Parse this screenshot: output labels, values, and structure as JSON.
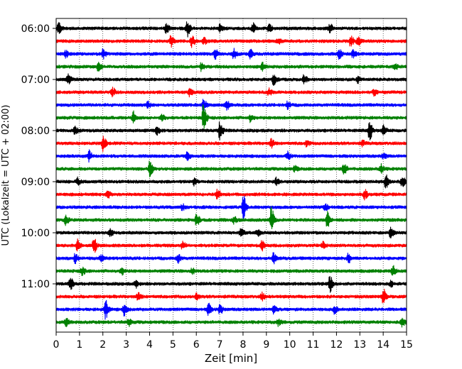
{
  "chart_data": {
    "type": "line",
    "title": "",
    "xlabel": "Zeit  [min]",
    "ylabel": "UTC (Lokalzeit = UTC + 02:00)",
    "xlim": [
      0,
      15
    ],
    "x_ticks": [
      "0",
      "1",
      "2",
      "3",
      "4",
      "5",
      "6",
      "7",
      "8",
      "9",
      "10",
      "11",
      "12",
      "13",
      "14",
      "15"
    ],
    "y_ticks": [
      "06:00",
      "07:00",
      "08:00",
      "09:00",
      "10:00",
      "11:00"
    ],
    "grid": "vertical-dotted",
    "trace_interval_minutes": 15,
    "start_time": "06:00",
    "trace_colors": [
      "#000000",
      "#ff0000",
      "#0000ff",
      "#008000"
    ],
    "traces": [
      {
        "t": "06:00",
        "color": "#000000",
        "events": [
          [
            0.1,
            1.2
          ],
          [
            4.7,
            1.2
          ],
          [
            5.6,
            1.8
          ],
          [
            7.0,
            0.8
          ],
          [
            8.4,
            1.2
          ],
          [
            9.1,
            0.8
          ],
          [
            11.7,
            1.2
          ]
        ]
      },
      {
        "t": "06:15",
        "color": "#ff0000",
        "events": [
          [
            4.9,
            1.2
          ],
          [
            5.8,
            1.4
          ],
          [
            6.3,
            0.8
          ],
          [
            12.6,
            1.3
          ],
          [
            12.9,
            1.0
          ],
          [
            9.5,
            0.7
          ]
        ]
      },
      {
        "t": "06:30",
        "color": "#0000ff",
        "events": [
          [
            0.4,
            0.8
          ],
          [
            2.0,
            1.0
          ],
          [
            6.8,
            1.0
          ],
          [
            7.6,
            1.2
          ],
          [
            8.3,
            0.9
          ],
          [
            12.1,
            1.1
          ],
          [
            12.7,
            0.8
          ]
        ]
      },
      {
        "t": "06:45",
        "color": "#008000",
        "events": [
          [
            1.8,
            1.1
          ],
          [
            6.2,
            0.8
          ],
          [
            8.8,
            0.9
          ],
          [
            14.5,
            0.6
          ]
        ]
      },
      {
        "t": "07:00",
        "color": "#000000",
        "events": [
          [
            0.5,
            1.4
          ],
          [
            9.3,
            1.3
          ],
          [
            10.6,
            0.9
          ],
          [
            12.9,
            0.7
          ]
        ]
      },
      {
        "t": "07:15",
        "color": "#ff0000",
        "events": [
          [
            2.4,
            1.0
          ],
          [
            5.7,
            0.8
          ],
          [
            9.1,
            0.8
          ],
          [
            13.6,
            0.7
          ]
        ]
      },
      {
        "t": "07:30",
        "color": "#0000ff",
        "events": [
          [
            3.9,
            0.7
          ],
          [
            6.3,
            1.4
          ],
          [
            7.3,
            1.0
          ],
          [
            9.9,
            0.8
          ]
        ]
      },
      {
        "t": "07:45",
        "color": "#008000",
        "events": [
          [
            3.3,
            1.4
          ],
          [
            6.3,
            3.2
          ],
          [
            4.5,
            0.8
          ],
          [
            8.3,
            0.8
          ]
        ]
      },
      {
        "t": "08:00",
        "color": "#000000",
        "events": [
          [
            0.8,
            0.9
          ],
          [
            7.0,
            2.2
          ],
          [
            13.4,
            2.2
          ],
          [
            14.0,
            1.1
          ],
          [
            4.3,
            0.8
          ]
        ]
      },
      {
        "t": "08:15",
        "color": "#ff0000",
        "events": [
          [
            2.0,
            1.6
          ],
          [
            9.2,
            0.9
          ],
          [
            13.1,
            0.6
          ],
          [
            10.7,
            0.6
          ]
        ]
      },
      {
        "t": "08:30",
        "color": "#0000ff",
        "events": [
          [
            1.4,
            1.2
          ],
          [
            5.6,
            0.8
          ],
          [
            9.9,
            1.0
          ],
          [
            14.0,
            0.6
          ]
        ]
      },
      {
        "t": "08:45",
        "color": "#008000",
        "events": [
          [
            4.0,
            1.8
          ],
          [
            12.3,
            1.4
          ],
          [
            13.9,
            1.0
          ],
          [
            10.2,
            0.6
          ]
        ]
      },
      {
        "t": "09:00",
        "color": "#000000",
        "events": [
          [
            0.9,
            0.8
          ],
          [
            5.9,
            0.8
          ],
          [
            9.4,
            0.8
          ],
          [
            14.1,
            1.8
          ],
          [
            14.8,
            1.4
          ]
        ]
      },
      {
        "t": "09:15",
        "color": "#ff0000",
        "events": [
          [
            2.2,
            0.8
          ],
          [
            6.9,
            1.2
          ],
          [
            13.2,
            1.0
          ]
        ]
      },
      {
        "t": "09:30",
        "color": "#0000ff",
        "events": [
          [
            8.0,
            2.6
          ],
          [
            5.4,
            0.7
          ],
          [
            11.5,
            0.7
          ]
        ]
      },
      {
        "t": "09:45",
        "color": "#008000",
        "events": [
          [
            0.4,
            1.0
          ],
          [
            6.0,
            1.4
          ],
          [
            9.2,
            2.8
          ],
          [
            11.6,
            1.8
          ],
          [
            7.6,
            0.7
          ]
        ]
      },
      {
        "t": "10:00",
        "color": "#000000",
        "events": [
          [
            2.3,
            0.9
          ],
          [
            7.9,
            1.0
          ],
          [
            8.6,
            0.7
          ],
          [
            14.3,
            1.3
          ]
        ]
      },
      {
        "t": "10:15",
        "color": "#ff0000",
        "events": [
          [
            0.9,
            1.5
          ],
          [
            1.6,
            1.7
          ],
          [
            8.8,
            1.3
          ],
          [
            5.4,
            0.8
          ],
          [
            11.4,
            0.7
          ]
        ]
      },
      {
        "t": "10:30",
        "color": "#0000ff",
        "events": [
          [
            0.8,
            1.0
          ],
          [
            1.9,
            0.8
          ],
          [
            5.2,
            1.0
          ],
          [
            9.3,
            1.2
          ],
          [
            12.5,
            1.0
          ]
        ]
      },
      {
        "t": "10:45",
        "color": "#008000",
        "events": [
          [
            1.1,
            1.0
          ],
          [
            2.8,
            0.8
          ],
          [
            14.4,
            1.2
          ],
          [
            5.8,
            0.6
          ]
        ]
      },
      {
        "t": "11:00",
        "color": "#000000",
        "events": [
          [
            0.6,
            1.3
          ],
          [
            3.4,
            0.8
          ],
          [
            11.7,
            1.8
          ],
          [
            14.3,
            0.6
          ]
        ]
      },
      {
        "t": "11:15",
        "color": "#ff0000",
        "events": [
          [
            3.5,
            0.8
          ],
          [
            8.8,
            0.8
          ],
          [
            14.0,
            1.8
          ],
          [
            6.0,
            0.6
          ]
        ]
      },
      {
        "t": "11:30",
        "color": "#0000ff",
        "events": [
          [
            2.1,
            2.2
          ],
          [
            2.9,
            1.3
          ],
          [
            6.5,
            1.3
          ],
          [
            7.0,
            1.1
          ],
          [
            9.3,
            0.9
          ],
          [
            11.9,
            0.9
          ]
        ]
      },
      {
        "t": "11:45",
        "color": "#008000",
        "events": [
          [
            0.4,
            0.9
          ],
          [
            3.1,
            0.9
          ],
          [
            9.5,
            0.7
          ],
          [
            14.8,
            0.9
          ]
        ]
      }
    ]
  }
}
